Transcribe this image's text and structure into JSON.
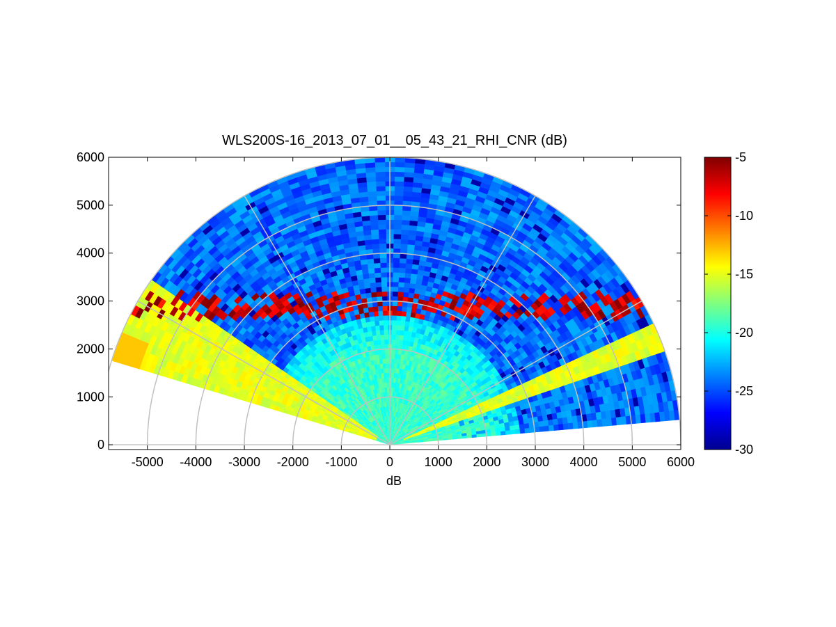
{
  "chart_data": {
    "type": "heatmap",
    "title": "WLS200S-16_2013_07_01__05_43_21_RHI_CNR (dB)",
    "xlabel": "dB",
    "ylabel": "",
    "xlim": [
      -5800,
      6000
    ],
    "ylim": [
      -100,
      6000
    ],
    "x_ticks": [
      -5000,
      -4000,
      -3000,
      -2000,
      -1000,
      0,
      1000,
      2000,
      3000,
      4000,
      5000,
      6000
    ],
    "y_ticks": [
      0,
      1000,
      2000,
      3000,
      4000,
      5000,
      6000
    ],
    "colorbar": {
      "colormap": "jet",
      "range": [
        -30,
        -5
      ],
      "ticks": [
        -5,
        -10,
        -15,
        -20,
        -25,
        -30
      ]
    },
    "polar_grid": {
      "radii": [
        1000,
        2000,
        3000,
        4000,
        5000,
        6000
      ],
      "angles_deg": [
        0,
        30,
        60,
        90,
        120,
        150,
        180
      ]
    },
    "scan": {
      "elevation_range_deg": [
        5,
        162
      ],
      "max_range": 6000
    },
    "features": [
      {
        "label": "cloud base band",
        "range_m": [
          2700,
          3500
        ],
        "cnr_db": -6
      },
      {
        "label": "aerosol layer near ground",
        "range_m": [
          0,
          2000
        ],
        "cnr_db": -20
      },
      {
        "label": "low-elevation sector left",
        "elevation_deg": [
          145,
          162
        ],
        "cnr_db": -16
      },
      {
        "label": "low-elevation sector right",
        "elevation_deg": [
          19,
          24
        ],
        "cnr_db": -16
      }
    ]
  },
  "colors": {
    "grid": "#c0c0c0",
    "axes": "#000000",
    "background": "#ffffff"
  }
}
